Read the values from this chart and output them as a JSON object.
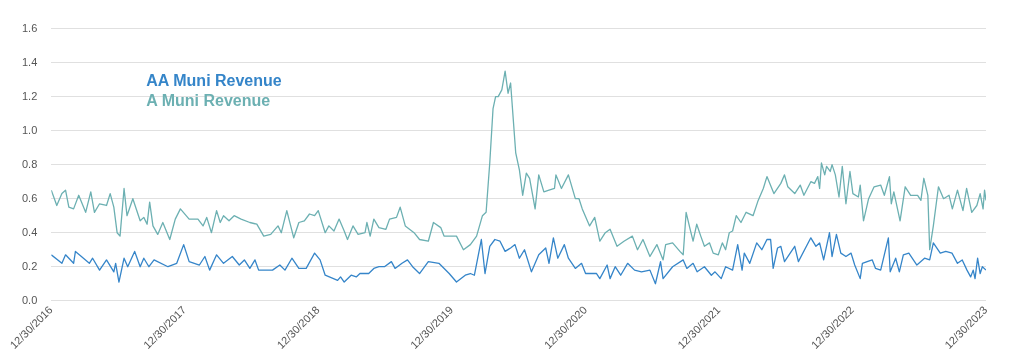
{
  "chart_data": {
    "type": "line",
    "legend": "top left",
    "grid": "y",
    "marker": "none",
    "line_style": "solid",
    "ylim": [
      0,
      1.6
    ],
    "yticks": [
      {
        "value": 0,
        "label": "0.0"
      },
      {
        "value": 0.2,
        "label": "0.2"
      },
      {
        "value": 0.4,
        "label": "0.4"
      },
      {
        "value": 0.6,
        "label": "0.6"
      },
      {
        "value": 0.8,
        "label": "0.8"
      },
      {
        "value": 1,
        "label": "1.0"
      },
      {
        "value": 1.2,
        "label": "1.2"
      },
      {
        "value": 1.4,
        "label": "1.4"
      },
      {
        "value": 1.6,
        "label": "1.6"
      }
    ],
    "xlim": [
      "2016-12-30",
      "2023-12-30"
    ],
    "xticks": [
      {
        "value": "2016-12-30",
        "label": "12/30/2016"
      },
      {
        "value": "2017-12-30",
        "label": "12/30/2017"
      },
      {
        "value": "2018-12-30",
        "label": "12/30/2018"
      },
      {
        "value": "2019-12-30",
        "label": "12/30/2019"
      },
      {
        "value": "2020-12-30",
        "label": "12/30/2020"
      },
      {
        "value": "2021-12-30",
        "label": "12/30/2021"
      },
      {
        "value": "2022-12-30",
        "label": "12/30/2022"
      },
      {
        "value": "2023-12-30",
        "label": "12/30/2023"
      }
    ],
    "series": [
      {
        "name": "AA Muni Revenue",
        "color": "#3585c9",
        "x": [
          "2016-12-30",
          "2017-01-28",
          "2017-02-07",
          "2017-03-01",
          "2017-03-06",
          "2017-04-13",
          "2017-04-22",
          "2017-05-11",
          "2017-05-30",
          "2017-06-19",
          "2017-06-24",
          "2017-07-03",
          "2017-07-17",
          "2017-07-27",
          "2017-08-15",
          "2017-08-30",
          "2017-09-09",
          "2017-09-23",
          "2017-10-07",
          "2017-11-14",
          "2017-12-08",
          "2017-12-27",
          "2018-01-11",
          "2018-02-08",
          "2018-02-23",
          "2018-03-08",
          "2018-03-27",
          "2018-04-15",
          "2018-05-09",
          "2018-05-28",
          "2018-06-11",
          "2018-06-26",
          "2018-07-10",
          "2018-07-20",
          "2018-08-27",
          "2018-09-16",
          "2018-09-30",
          "2018-10-19",
          "2018-11-07",
          "2018-11-27",
          "2018-12-20",
          "2019-01-04",
          "2019-01-18",
          "2019-02-21",
          "2019-03-01",
          "2019-03-11",
          "2019-03-30",
          "2019-04-13",
          "2019-04-23",
          "2019-05-17",
          "2019-05-31",
          "2019-06-14",
          "2019-06-29",
          "2019-07-18",
          "2019-07-28",
          "2019-08-16",
          "2019-08-31",
          "2019-09-14",
          "2019-10-03",
          "2019-10-27",
          "2019-11-25",
          "2019-12-23",
          "2020-01-12",
          "2020-02-05",
          "2020-02-19",
          "2020-03-01",
          "2020-03-20",
          "2020-03-30",
          "2020-04-12",
          "2020-04-26",
          "2020-05-10",
          "2020-05-24",
          "2020-06-08",
          "2020-06-20",
          "2020-07-02",
          "2020-07-16",
          "2020-08-04",
          "2020-08-24",
          "2020-09-12",
          "2020-09-21",
          "2020-10-03",
          "2020-10-15",
          "2020-11-02",
          "2020-11-13",
          "2020-12-02",
          "2020-12-19",
          "2020-12-30",
          "2021-01-29",
          "2021-02-07",
          "2021-02-27",
          "2021-03-07",
          "2021-03-21",
          "2021-04-05",
          "2021-04-24",
          "2021-05-13",
          "2021-06-01",
          "2021-06-24",
          "2021-07-09",
          "2021-07-23",
          "2021-07-30",
          "2021-08-25",
          "2021-09-23",
          "2021-10-03",
          "2021-10-20",
          "2021-10-31",
          "2021-11-20",
          "2021-12-09",
          "2021-12-19",
          "2022-01-05",
          "2022-01-17",
          "2022-02-05",
          "2022-02-19",
          "2022-03-03",
          "2022-03-09",
          "2022-03-24",
          "2022-04-12",
          "2022-04-26",
          "2022-05-10",
          "2022-05-20",
          "2022-05-27",
          "2022-06-08",
          "2022-06-17",
          "2022-06-27",
          "2022-07-25",
          "2022-08-04",
          "2022-09-07",
          "2022-09-21",
          "2022-10-01",
          "2022-10-12",
          "2022-10-28",
          "2022-11-04",
          "2022-11-16",
          "2022-11-28",
          "2022-12-12",
          "2022-12-26",
          "2023-01-05",
          "2023-01-20",
          "2023-01-26",
          "2023-02-08",
          "2023-02-22",
          "2023-03-03",
          "2023-03-17",
          "2023-04-07",
          "2023-04-12",
          "2023-04-27",
          "2023-05-07",
          "2023-05-18",
          "2023-06-02",
          "2023-06-24",
          "2023-07-15",
          "2023-07-29",
          "2023-08-08",
          "2023-08-27",
          "2023-09-11",
          "2023-09-28",
          "2023-10-13",
          "2023-10-26",
          "2023-11-08",
          "2023-11-18",
          "2023-11-25",
          "2023-11-30",
          "2023-12-07",
          "2023-12-14",
          "2023-12-20",
          "2023-12-30"
        ],
        "values": [
          0.27,
          0.22,
          0.27,
          0.22,
          0.29,
          0.22,
          0.25,
          0.18,
          0.24,
          0.17,
          0.22,
          0.11,
          0.25,
          0.2,
          0.29,
          0.2,
          0.25,
          0.2,
          0.24,
          0.2,
          0.22,
          0.33,
          0.23,
          0.21,
          0.26,
          0.18,
          0.27,
          0.22,
          0.26,
          0.21,
          0.24,
          0.19,
          0.24,
          0.18,
          0.18,
          0.21,
          0.18,
          0.25,
          0.19,
          0.19,
          0.28,
          0.24,
          0.15,
          0.12,
          0.14,
          0.11,
          0.15,
          0.14,
          0.16,
          0.16,
          0.19,
          0.2,
          0.2,
          0.23,
          0.19,
          0.22,
          0.24,
          0.2,
          0.16,
          0.23,
          0.22,
          0.16,
          0.11,
          0.15,
          0.16,
          0.15,
          0.36,
          0.16,
          0.32,
          0.36,
          0.35,
          0.29,
          0.31,
          0.33,
          0.25,
          0.3,
          0.17,
          0.27,
          0.31,
          0.22,
          0.37,
          0.25,
          0.33,
          0.25,
          0.19,
          0.22,
          0.16,
          0.16,
          0.13,
          0.21,
          0.13,
          0.2,
          0.15,
          0.22,
          0.18,
          0.17,
          0.18,
          0.1,
          0.23,
          0.13,
          0.2,
          0.24,
          0.19,
          0.22,
          0.17,
          0.2,
          0.15,
          0.17,
          0.13,
          0.2,
          0.18,
          0.33,
          0.18,
          0.28,
          0.22,
          0.34,
          0.3,
          0.36,
          0.36,
          0.19,
          0.31,
          0.32,
          0.23,
          0.32,
          0.23,
          0.37,
          0.32,
          0.34,
          0.24,
          0.4,
          0.26,
          0.39,
          0.28,
          0.26,
          0.28,
          0.21,
          0.13,
          0.22,
          0.23,
          0.24,
          0.19,
          0.18,
          0.37,
          0.17,
          0.25,
          0.17,
          0.27,
          0.28,
          0.21,
          0.25,
          0.24,
          0.34,
          0.28,
          0.29,
          0.28,
          0.22,
          0.24,
          0.18,
          0.14,
          0.18,
          0.13,
          0.25,
          0.16,
          0.2,
          0.18
        ]
      },
      {
        "name": "A Muni Revenue",
        "color": "#6cb0b2",
        "x": [
          "2016-12-30",
          "2017-01-14",
          "2017-01-28",
          "2017-02-07",
          "2017-02-16",
          "2017-03-01",
          "2017-03-15",
          "2017-04-03",
          "2017-04-17",
          "2017-04-27",
          "2017-05-11",
          "2017-05-30",
          "2017-06-09",
          "2017-06-19",
          "2017-06-28",
          "2017-07-06",
          "2017-07-17",
          "2017-07-25",
          "2017-08-10",
          "2017-08-30",
          "2017-09-09",
          "2017-09-18",
          "2017-09-25",
          "2017-10-04",
          "2017-10-17",
          "2017-10-31",
          "2017-11-19",
          "2017-12-04",
          "2017-12-18",
          "2018-01-11",
          "2018-02-04",
          "2018-02-18",
          "2018-02-28",
          "2018-03-13",
          "2018-03-27",
          "2018-04-06",
          "2018-04-15",
          "2018-04-30",
          "2018-05-14",
          "2018-06-02",
          "2018-06-26",
          "2018-07-15",
          "2018-08-03",
          "2018-08-22",
          "2018-09-11",
          "2018-09-20",
          "2018-10-05",
          "2018-10-24",
          "2018-11-07",
          "2018-11-22",
          "2018-12-06",
          "2018-12-20",
          "2018-12-30",
          "2019-01-18",
          "2019-01-28",
          "2019-02-11",
          "2019-02-25",
          "2019-03-11",
          "2019-03-20",
          "2019-04-04",
          "2019-04-18",
          "2019-05-07",
          "2019-05-12",
          "2019-05-21",
          "2019-05-31",
          "2019-06-14",
          "2019-07-03",
          "2019-07-13",
          "2019-08-01",
          "2019-08-11",
          "2019-08-25",
          "2019-09-18",
          "2019-10-03",
          "2019-10-27",
          "2019-11-10",
          "2019-11-30",
          "2019-12-09",
          "2019-12-23",
          "2020-01-12",
          "2020-01-31",
          "2020-02-19",
          "2020-03-07",
          "2020-03-23",
          "2020-04-02",
          "2020-04-12",
          "2020-04-21",
          "2020-04-28",
          "2020-05-05",
          "2020-05-15",
          "2020-05-24",
          "2020-06-01",
          "2020-06-08",
          "2020-06-22",
          "2020-07-02",
          "2020-07-11",
          "2020-07-21",
          "2020-07-30",
          "2020-08-14",
          "2020-08-24",
          "2020-09-07",
          "2020-09-21",
          "2020-10-06",
          "2020-10-10",
          "2020-10-25",
          "2020-11-13",
          "2020-12-02",
          "2020-12-12",
          "2020-12-21",
          "2021-01-10",
          "2021-01-24",
          "2021-02-07",
          "2021-02-22",
          "2021-03-07",
          "2021-03-26",
          "2021-04-14",
          "2021-05-07",
          "2021-05-21",
          "2021-06-05",
          "2021-06-24",
          "2021-07-13",
          "2021-07-30",
          "2021-08-06",
          "2021-08-25",
          "2021-09-14",
          "2021-09-23",
          "2021-10-01",
          "2021-10-12",
          "2021-10-20",
          "2021-10-30",
          "2021-11-10",
          "2021-11-20",
          "2021-12-04",
          "2021-12-14",
          "2021-12-28",
          "2022-01-08",
          "2022-01-17",
          "2022-01-27",
          "2022-02-05",
          "2022-02-15",
          "2022-02-28",
          "2022-03-14",
          "2022-04-02",
          "2022-04-16",
          "2022-04-30",
          "2022-05-10",
          "2022-05-29",
          "2022-06-17",
          "2022-06-27",
          "2022-07-06",
          "2022-07-25",
          "2022-08-09",
          "2022-08-19",
          "2022-09-07",
          "2022-09-17",
          "2022-09-26",
          "2022-10-01",
          "2022-10-06",
          "2022-10-15",
          "2022-10-20",
          "2022-10-30",
          "2022-11-04",
          "2022-11-13",
          "2022-11-23",
          "2022-12-02",
          "2022-12-12",
          "2022-12-23",
          "2022-12-31",
          "2023-01-15",
          "2023-01-20",
          "2023-01-29",
          "2023-02-12",
          "2023-02-27",
          "2023-03-17",
          "2023-03-27",
          "2023-04-10",
          "2023-04-15",
          "2023-04-22",
          "2023-05-09",
          "2023-05-23",
          "2023-06-07",
          "2023-06-26",
          "2023-07-05",
          "2023-07-13",
          "2023-07-24",
          "2023-07-29",
          "2023-08-08",
          "2023-08-22",
          "2023-09-05",
          "2023-09-20",
          "2023-09-29",
          "2023-10-13",
          "2023-10-28",
          "2023-11-07",
          "2023-11-21",
          "2023-12-05",
          "2023-12-14",
          "2023-12-22",
          "2023-12-26",
          "2023-12-30"
        ],
        "values": [
          0.65,
          0.56,
          0.63,
          0.65,
          0.55,
          0.54,
          0.62,
          0.52,
          0.64,
          0.52,
          0.57,
          0.56,
          0.63,
          0.55,
          0.4,
          0.38,
          0.66,
          0.5,
          0.6,
          0.47,
          0.49,
          0.45,
          0.58,
          0.44,
          0.39,
          0.46,
          0.36,
          0.48,
          0.54,
          0.48,
          0.48,
          0.44,
          0.49,
          0.4,
          0.53,
          0.46,
          0.5,
          0.47,
          0.5,
          0.48,
          0.46,
          0.45,
          0.38,
          0.39,
          0.44,
          0.4,
          0.53,
          0.37,
          0.46,
          0.47,
          0.51,
          0.5,
          0.53,
          0.4,
          0.44,
          0.41,
          0.48,
          0.41,
          0.36,
          0.44,
          0.39,
          0.4,
          0.46,
          0.38,
          0.48,
          0.43,
          0.42,
          0.48,
          0.49,
          0.55,
          0.44,
          0.4,
          0.36,
          0.35,
          0.46,
          0.43,
          0.38,
          0.38,
          0.38,
          0.3,
          0.33,
          0.38,
          0.5,
          0.52,
          0.81,
          1.13,
          1.2,
          1.2,
          1.24,
          1.35,
          1.22,
          1.28,
          0.87,
          0.77,
          0.62,
          0.75,
          0.72,
          0.54,
          0.74,
          0.64,
          0.65,
          0.66,
          0.74,
          0.66,
          0.74,
          0.6,
          0.6,
          0.54,
          0.44,
          0.49,
          0.35,
          0.4,
          0.42,
          0.32,
          0.35,
          0.38,
          0.3,
          0.36,
          0.26,
          0.33,
          0.24,
          0.33,
          0.34,
          0.29,
          0.27,
          0.52,
          0.42,
          0.35,
          0.45,
          0.38,
          0.32,
          0.34,
          0.28,
          0.27,
          0.34,
          0.3,
          0.4,
          0.41,
          0.5,
          0.46,
          0.52,
          0.5,
          0.59,
          0.66,
          0.73,
          0.63,
          0.69,
          0.74,
          0.67,
          0.63,
          0.68,
          0.62,
          0.7,
          0.69,
          0.73,
          0.66,
          0.81,
          0.74,
          0.79,
          0.76,
          0.8,
          0.74,
          0.61,
          0.79,
          0.57,
          0.76,
          0.63,
          0.61,
          0.68,
          0.47,
          0.6,
          0.67,
          0.68,
          0.62,
          0.73,
          0.57,
          0.64,
          0.47,
          0.67,
          0.62,
          0.62,
          0.59,
          0.72,
          0.62,
          0.3,
          0.44,
          0.67,
          0.6,
          0.62,
          0.54,
          0.65,
          0.53,
          0.66,
          0.52,
          0.56,
          0.63,
          0.54,
          0.65,
          0.59
        ]
      }
    ]
  }
}
